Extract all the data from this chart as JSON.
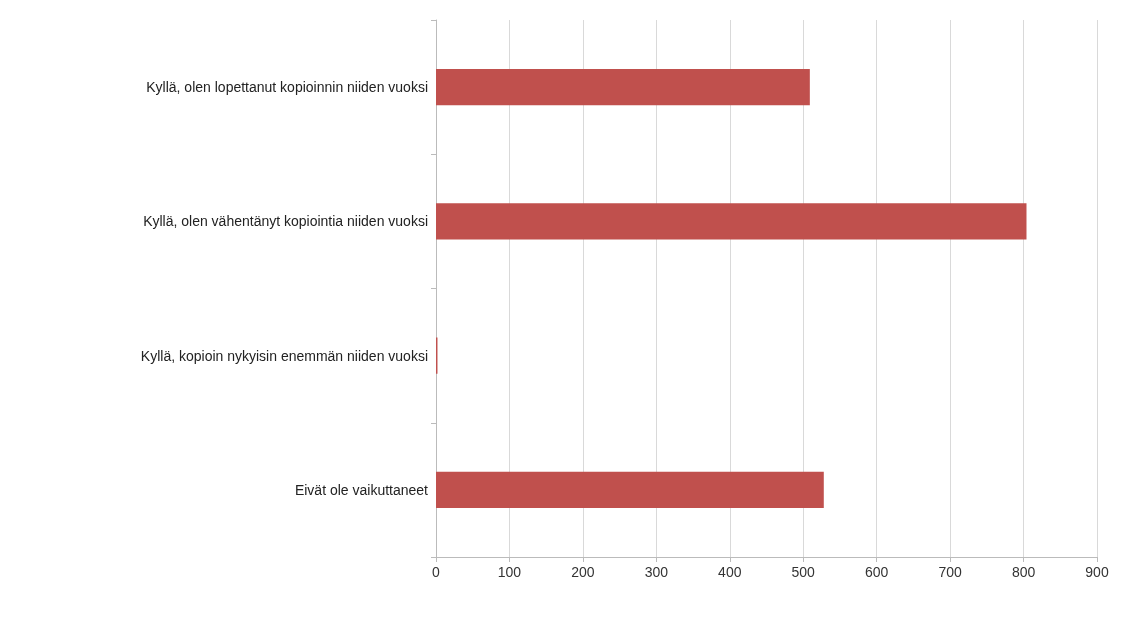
{
  "chart_data": {
    "type": "bar",
    "orientation": "horizontal",
    "categories": [
      "Kyllä, olen lopettanut kopioinnin niiden vuoksi",
      "Kyllä, olen vähentänyt kopiointia niiden vuoksi",
      "Kyllä, kopioin nykyisin enemmän niiden vuoksi",
      "Eivät ole vaikuttaneet"
    ],
    "values": [
      509,
      804,
      2,
      528
    ],
    "color": "#c0504d",
    "xlim": [
      0,
      900
    ],
    "xticks": [
      0,
      100,
      200,
      300,
      400,
      500,
      600,
      700,
      800,
      900
    ],
    "grid": "x"
  }
}
